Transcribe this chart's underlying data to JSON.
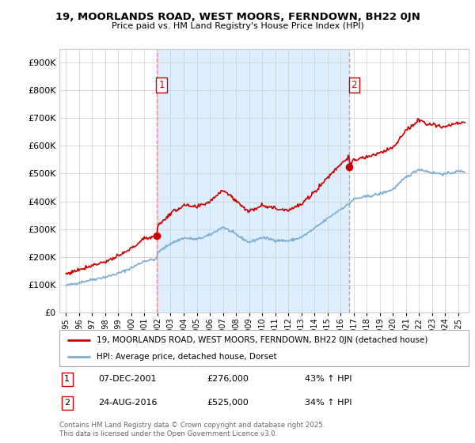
{
  "title": "19, MOORLANDS ROAD, WEST MOORS, FERNDOWN, BH22 0JN",
  "subtitle": "Price paid vs. HM Land Registry's House Price Index (HPI)",
  "legend_line1": "19, MOORLANDS ROAD, WEST MOORS, FERNDOWN, BH22 0JN (detached house)",
  "legend_line2": "HPI: Average price, detached house, Dorset",
  "footer": "Contains HM Land Registry data © Crown copyright and database right 2025.\nThis data is licensed under the Open Government Licence v3.0.",
  "table_rows": [
    {
      "num": "1",
      "date": "07-DEC-2001",
      "price": "£276,000",
      "hpi": "43% ↑ HPI"
    },
    {
      "num": "2",
      "date": "24-AUG-2016",
      "price": "£525,000",
      "hpi": "34% ↑ HPI"
    }
  ],
  "sale1_x": 2001.93,
  "sale1_y": 276000,
  "sale2_x": 2016.65,
  "sale2_y": 525000,
  "red_color": "#cc0000",
  "blue_color": "#7aadcf",
  "vline1_color": "#ff8888",
  "vline2_color": "#aaaaaa",
  "fill_color": "#ddeeff",
  "ylim": [
    0,
    950000
  ],
  "xlim_left": 1994.5,
  "xlim_right": 2025.8,
  "xticks": [
    1995,
    1996,
    1997,
    1998,
    1999,
    2000,
    2001,
    2002,
    2003,
    2004,
    2005,
    2006,
    2007,
    2008,
    2009,
    2010,
    2011,
    2012,
    2013,
    2014,
    2015,
    2016,
    2017,
    2018,
    2019,
    2020,
    2021,
    2022,
    2023,
    2024,
    2025
  ],
  "yticks": [
    0,
    100000,
    200000,
    300000,
    400000,
    500000,
    600000,
    700000,
    800000,
    900000
  ],
  "ytick_labels": [
    "£0",
    "£100K",
    "£200K",
    "£300K",
    "£400K",
    "£500K",
    "£600K",
    "£700K",
    "£800K",
    "£900K"
  ]
}
